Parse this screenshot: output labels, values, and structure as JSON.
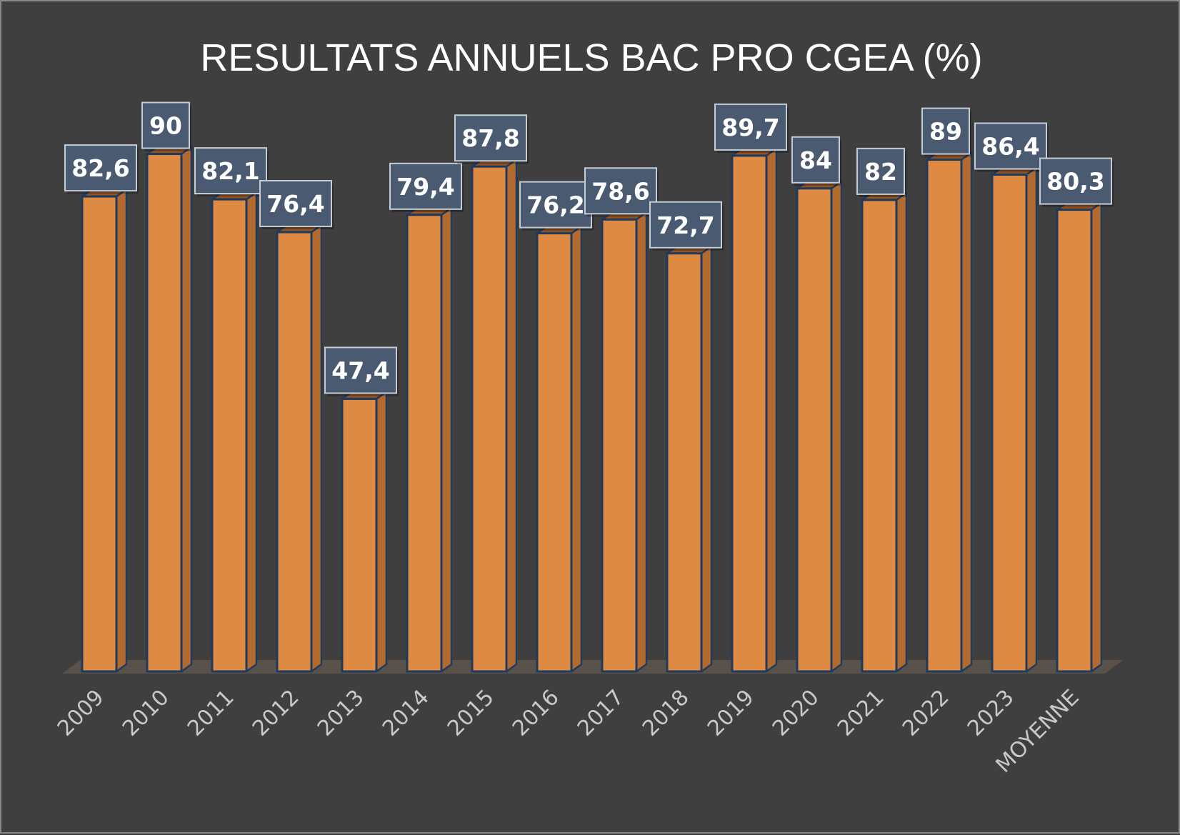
{
  "chart_data": {
    "type": "bar",
    "title": "RESULTATS ANNUELS BAC PRO CGEA (%)",
    "xlabel": "",
    "ylabel": "",
    "categories": [
      "2009",
      "2010",
      "2011",
      "2012",
      "2013",
      "2014",
      "2015",
      "2016",
      "2017",
      "2018",
      "2019",
      "2020",
      "2021",
      "2022",
      "2023",
      "MOYENNE"
    ],
    "values": [
      82.6,
      90,
      82.1,
      76.4,
      47.4,
      79.4,
      87.8,
      76.2,
      78.6,
      72.7,
      89.7,
      84,
      82,
      89,
      86.4,
      80.3
    ],
    "data_labels": [
      "82,6",
      "90",
      "82,1",
      "76,4",
      "47,4",
      "79,4",
      "87,8",
      "76,2",
      "78,6",
      "72,7",
      "89,7",
      "84",
      "82",
      "89",
      "86,4",
      "80,3"
    ],
    "ylim": [
      0,
      100
    ],
    "grid": false,
    "legend": "none",
    "style": "3d-column"
  },
  "colors": {
    "background": "#3f3f3f",
    "bar_front": "#df8a43",
    "bar_side": "#b26a2f",
    "bar_top": "#8f5424",
    "bar_outline": "#1f3a5f",
    "label_box": "#4a5a70",
    "label_border": "#c4ccd6",
    "floor": "#59524a",
    "tick_text": "#c8c8c8"
  }
}
